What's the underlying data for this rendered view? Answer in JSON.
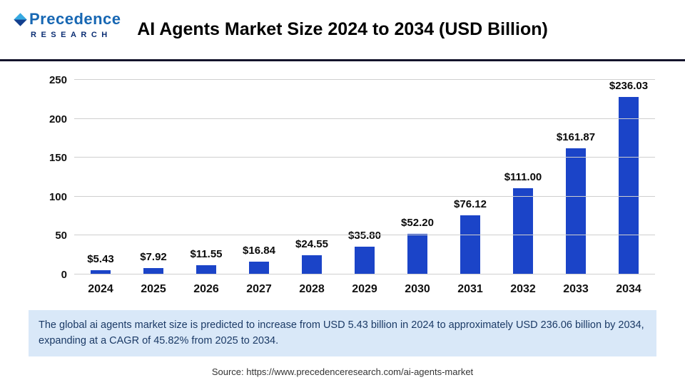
{
  "header": {
    "title": "AI Agents Market Size 2024 to 2034 (USD Billion)",
    "logo": {
      "line1": "Precedence",
      "line2": "RESEARCH"
    }
  },
  "chart_data": {
    "type": "bar",
    "title": "AI Agents Market Size 2024 to 2034 (USD Billion)",
    "categories": [
      "2024",
      "2025",
      "2026",
      "2027",
      "2028",
      "2029",
      "2030",
      "2031",
      "2032",
      "2033",
      "2034"
    ],
    "values": [
      5.43,
      7.92,
      11.55,
      16.84,
      24.55,
      35.8,
      52.2,
      76.12,
      111.0,
      161.87,
      236.03
    ],
    "value_labels": [
      "$5.43",
      "$7.92",
      "$11.55",
      "$16.84",
      "$24.55",
      "$35.80",
      "$52.20",
      "$76.12",
      "$111.00",
      "$161.87",
      "$236.03"
    ],
    "xlabel": "",
    "ylabel": "",
    "ylim": [
      0,
      250
    ],
    "yticks": [
      0,
      50,
      100,
      150,
      200,
      250
    ],
    "grid": true,
    "legend_position": "none",
    "bar_color": "#1b44c8"
  },
  "note": {
    "text": "The global ai agents market size is predicted to increase from USD 5.43 billion in 2024 to approximately USD 236.06 billion by 2034, expanding at a CAGR of 45.82% from 2025 to 2034."
  },
  "source": {
    "text": "Source: https://www.precedenceresearch.com/ai-agents-market"
  }
}
